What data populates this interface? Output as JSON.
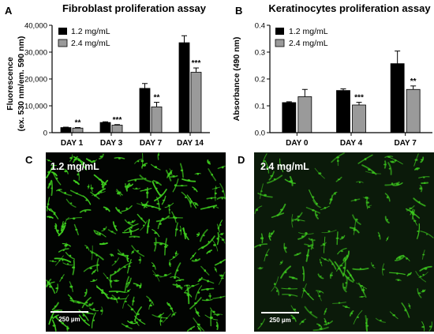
{
  "panels": {
    "A": "A",
    "B": "B",
    "C": "C",
    "D": "D"
  },
  "colors": {
    "series1": "#000000",
    "series2": "#9a9a9a",
    "cell": "#3fd01f",
    "micro_bg": "#020402",
    "micro_bg_dim": "#0b1a0a"
  },
  "chart_data": [
    {
      "type": "bar",
      "title": "Fibroblast proliferation assay",
      "xlabel": "",
      "ylabel_line1": "Fluorescence",
      "ylabel_line2": "(ex. 530 nm/em. 590 nm)",
      "ylim": [
        0,
        40000
      ],
      "yticks": [
        0,
        10000,
        20000,
        30000,
        40000
      ],
      "ytick_labels": [
        "0",
        "10,000",
        "20,000",
        "30,000",
        "40,000"
      ],
      "legend_position": "top-left",
      "categories": [
        "DAY 1",
        "DAY 3",
        "DAY 7",
        "DAY 14"
      ],
      "series": [
        {
          "name": "1.2 mg/mL",
          "values": [
            1900,
            3800,
            16500,
            33500
          ],
          "errors": [
            150,
            250,
            1800,
            2600
          ]
        },
        {
          "name": "2.4 mg/mL",
          "values": [
            1700,
            2800,
            9600,
            22500
          ],
          "errors": [
            200,
            200,
            1700,
            1600
          ]
        }
      ],
      "significance": [
        "**",
        "***",
        "**",
        "***"
      ]
    },
    {
      "type": "bar",
      "title": "Keratinocytes proliferation assay",
      "xlabel": "",
      "ylabel": "Absorbance (490 nm)",
      "ylim": [
        0,
        0.4
      ],
      "yticks": [
        0.0,
        0.1,
        0.2,
        0.3,
        0.4
      ],
      "ytick_labels": [
        "0.0",
        "0.1",
        "0.2",
        "0.3",
        "0.4"
      ],
      "legend_position": "top-left",
      "categories": [
        "DAY 0",
        "DAY 4",
        "DAY 7"
      ],
      "series": [
        {
          "name": "1.2 mg/mL",
          "values": [
            0.112,
            0.157,
            0.257
          ],
          "errors": [
            0.003,
            0.006,
            0.047
          ]
        },
        {
          "name": "2.4 mg/mL",
          "values": [
            0.134,
            0.103,
            0.161
          ],
          "errors": [
            0.027,
            0.01,
            0.013
          ]
        }
      ],
      "significance": [
        "",
        "***",
        "**"
      ]
    }
  ],
  "micrographs": [
    {
      "label": "1.2 mg/mL",
      "scale_bar": "250 µm",
      "cell_density": "high"
    },
    {
      "label": "2.4 mg/mL",
      "scale_bar": "250 µm",
      "cell_density": "medium"
    }
  ]
}
